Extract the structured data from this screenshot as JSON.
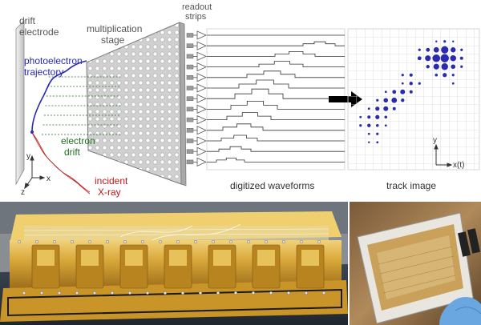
{
  "labels": {
    "drift_1": "drift",
    "drift_2": "electrode",
    "stage_1": "multiplication",
    "stage_2": "stage",
    "readout_1": "readout",
    "readout_2": "strips",
    "photo_1": "photoelectron",
    "photo_2": "trajectory",
    "edrift_1": "electron",
    "edrift_2": "drift",
    "incident_1": "incident",
    "incident_2": "X-ray",
    "waveforms": "digitized waveforms",
    "track": "track image",
    "axis_y": "y",
    "axis_x": "x",
    "axis_z": "z",
    "track_axis_y": "y",
    "track_axis_x": "x(t)"
  },
  "colors": {
    "photoelectron": "#2a2ab4",
    "electron_drift": "#1f6e1f",
    "incident": "#c01818",
    "dots": "#2b2bb0",
    "gold": "#d8aa3a",
    "glove": "#6aa6e0"
  },
  "photos": {
    "left": "gold-detector-assembly-photo",
    "right": "gem-frame-handheld-photo"
  }
}
